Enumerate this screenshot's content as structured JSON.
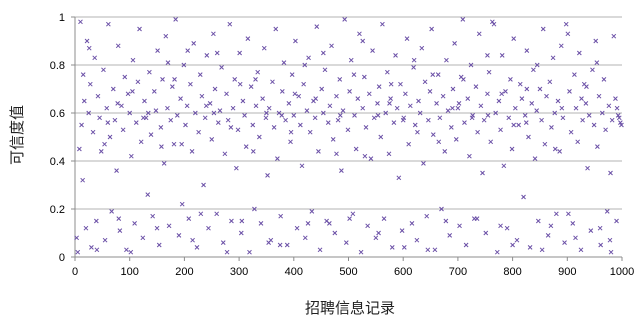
{
  "chart_data": {
    "type": "scatter",
    "title": "",
    "xlabel": "招聘信息记录",
    "ylabel": "可信度值",
    "xlim": [
      0,
      1000
    ],
    "ylim": [
      0,
      1
    ],
    "x_ticks": [
      0,
      100,
      200,
      300,
      400,
      500,
      600,
      700,
      800,
      900,
      1000
    ],
    "y_ticks": [
      0,
      0.2,
      0.4,
      0.6,
      0.8,
      1
    ],
    "y_tick_labels": [
      "0",
      "0.2",
      "0.4",
      "0.6",
      "0.8",
      "1"
    ],
    "grid": "horizontal",
    "legend": "none",
    "marker": "x",
    "series_color": "#6a4fa6",
    "points": [
      [
        3,
        0.08
      ],
      [
        5,
        0.02
      ],
      [
        8,
        0.45
      ],
      [
        10,
        0.98
      ],
      [
        12,
        0.55
      ],
      [
        14,
        0.32
      ],
      [
        17,
        0.65
      ],
      [
        20,
        0.12
      ],
      [
        22,
        0.9
      ],
      [
        25,
        0.6
      ],
      [
        28,
        0.72
      ],
      [
        30,
        0.04
      ],
      [
        33,
        0.52
      ],
      [
        36,
        0.83
      ],
      [
        39,
        0.15
      ],
      [
        42,
        0.67
      ],
      [
        45,
        0.58
      ],
      [
        48,
        0.44
      ],
      [
        52,
        0.78
      ],
      [
        55,
        0.07
      ],
      [
        58,
        0.62
      ],
      [
        61,
        0.97
      ],
      [
        64,
        0.5
      ],
      [
        67,
        0.19
      ],
      [
        70,
        0.7
      ],
      [
        73,
        0.57
      ],
      [
        76,
        0.36
      ],
      [
        79,
        0.88
      ],
      [
        82,
        0.11
      ],
      [
        85,
        0.63
      ],
      [
        88,
        0.53
      ],
      [
        91,
        0.75
      ],
      [
        94,
        0.03
      ],
      [
        97,
        0.68
      ],
      [
        100,
        0.6
      ],
      [
        103,
        0.42
      ],
      [
        106,
        0.82
      ],
      [
        109,
        0.14
      ],
      [
        112,
        0.56
      ],
      [
        115,
        0.73
      ],
      [
        118,
        0.95
      ],
      [
        121,
        0.48
      ],
      [
        124,
        0.08
      ],
      [
        127,
        0.65
      ],
      [
        130,
        0.58
      ],
      [
        133,
        0.26
      ],
      [
        136,
        0.77
      ],
      [
        139,
        0.51
      ],
      [
        142,
        0.17
      ],
      [
        145,
        0.69
      ],
      [
        148,
        0.61
      ],
      [
        151,
        0.86
      ],
      [
        154,
        0.05
      ],
      [
        157,
        0.54
      ],
      [
        160,
        0.74
      ],
      [
        163,
        0.39
      ],
      [
        166,
        0.92
      ],
      [
        169,
        0.62
      ],
      [
        172,
        0.13
      ],
      [
        175,
        0.57
      ],
      [
        178,
        0.71
      ],
      [
        181,
        0.47
      ],
      [
        184,
        0.99
      ],
      [
        187,
        0.59
      ],
      [
        190,
        0.09
      ],
      [
        193,
        0.66
      ],
      [
        196,
        0.22
      ],
      [
        199,
        0.8
      ],
      [
        202,
        0.55
      ],
      [
        205,
        0.63
      ],
      [
        208,
        0.16
      ],
      [
        211,
        0.72
      ],
      [
        214,
        0.44
      ],
      [
        217,
        0.89
      ],
      [
        220,
        0.6
      ],
      [
        223,
        0.04
      ],
      [
        226,
        0.52
      ],
      [
        229,
        0.76
      ],
      [
        232,
        0.67
      ],
      [
        235,
        0.3
      ],
      [
        238,
        0.58
      ],
      [
        241,
        0.84
      ],
      [
        244,
        0.12
      ],
      [
        247,
        0.64
      ],
      [
        250,
        0.49
      ],
      [
        253,
        0.93
      ],
      [
        256,
        0.7
      ],
      [
        259,
        0.18
      ],
      [
        262,
        0.56
      ],
      [
        265,
        0.61
      ],
      [
        268,
        0.79
      ],
      [
        271,
        0.06
      ],
      [
        274,
        0.43
      ],
      [
        277,
        0.68
      ],
      [
        280,
        0.57
      ],
      [
        283,
        0.97
      ],
      [
        286,
        0.15
      ],
      [
        289,
        0.62
      ],
      [
        292,
        0.74
      ],
      [
        295,
        0.37
      ],
      [
        298,
        0.53
      ],
      [
        301,
        0.85
      ],
      [
        304,
        0.1
      ],
      [
        307,
        0.65
      ],
      [
        310,
        0.59
      ],
      [
        313,
        0.46
      ],
      [
        316,
        0.91
      ],
      [
        319,
        0.02
      ],
      [
        322,
        0.71
      ],
      [
        325,
        0.55
      ],
      [
        328,
        0.2
      ],
      [
        331,
        0.63
      ],
      [
        334,
        0.77
      ],
      [
        337,
        0.5
      ],
      [
        340,
        0.14
      ],
      [
        343,
        0.66
      ],
      [
        346,
        0.87
      ],
      [
        349,
        0.58
      ],
      [
        352,
        0.34
      ],
      [
        355,
        0.62
      ],
      [
        358,
        0.07
      ],
      [
        361,
        0.73
      ],
      [
        364,
        0.54
      ],
      [
        367,
        0.95
      ],
      [
        370,
        0.41
      ],
      [
        373,
        0.6
      ],
      [
        376,
        0.17
      ],
      [
        379,
        0.69
      ],
      [
        382,
        0.81
      ],
      [
        385,
        0.57
      ],
      [
        388,
        0.05
      ],
      [
        391,
        0.64
      ],
      [
        394,
        0.48
      ],
      [
        397,
        0.76
      ],
      [
        400,
        0.59
      ],
      [
        403,
        0.9
      ],
      [
        406,
        0.12
      ],
      [
        409,
        0.67
      ],
      [
        412,
        0.55
      ],
      [
        415,
        0.38
      ],
      [
        418,
        0.72
      ],
      [
        421,
        0.08
      ],
      [
        424,
        0.61
      ],
      [
        427,
        0.83
      ],
      [
        430,
        0.52
      ],
      [
        433,
        0.19
      ],
      [
        436,
        0.65
      ],
      [
        439,
        0.58
      ],
      [
        442,
        0.96
      ],
      [
        445,
        0.44
      ],
      [
        448,
        0.03
      ],
      [
        451,
        0.7
      ],
      [
        454,
        0.6
      ],
      [
        457,
        0.78
      ],
      [
        460,
        0.15
      ],
      [
        463,
        0.56
      ],
      [
        466,
        0.63
      ],
      [
        469,
        0.88
      ],
      [
        472,
        0.49
      ],
      [
        475,
        0.1
      ],
      [
        478,
        0.67
      ],
      [
        481,
        0.57
      ],
      [
        484,
        0.74
      ],
      [
        487,
        0.36
      ],
      [
        490,
        0.61
      ],
      [
        493,
        0.99
      ],
      [
        496,
        0.06
      ],
      [
        499,
        0.53
      ],
      [
        502,
        0.69
      ],
      [
        505,
        0.82
      ],
      [
        508,
        0.18
      ],
      [
        511,
        0.59
      ],
      [
        514,
        0.45
      ],
      [
        517,
        0.66
      ],
      [
        520,
        0.93
      ],
      [
        523,
        0.02
      ],
      [
        526,
        0.62
      ],
      [
        529,
        0.75
      ],
      [
        532,
        0.54
      ],
      [
        535,
        0.13
      ],
      [
        538,
        0.68
      ],
      [
        541,
        0.41
      ],
      [
        544,
        0.86
      ],
      [
        547,
        0.58
      ],
      [
        550,
        0.08
      ],
      [
        553,
        0.64
      ],
      [
        556,
        0.71
      ],
      [
        559,
        0.5
      ],
      [
        562,
        0.97
      ],
      [
        565,
        0.16
      ],
      [
        568,
        0.6
      ],
      [
        571,
        0.77
      ],
      [
        574,
        0.43
      ],
      [
        577,
        0.66
      ],
      [
        580,
        0.04
      ],
      [
        583,
        0.56
      ],
      [
        586,
        0.84
      ],
      [
        589,
        0.62
      ],
      [
        592,
        0.33
      ],
      [
        595,
        0.72
      ],
      [
        598,
        0.11
      ],
      [
        601,
        0.58
      ],
      [
        604,
        0.68
      ],
      [
        607,
        0.91
      ],
      [
        610,
        0.47
      ],
      [
        613,
        0.63
      ],
      [
        616,
        0.14
      ],
      [
        619,
        0.79
      ],
      [
        622,
        0.55
      ],
      [
        625,
        0.07
      ],
      [
        628,
        0.65
      ],
      [
        631,
        0.6
      ],
      [
        634,
        0.87
      ],
      [
        637,
        0.39
      ],
      [
        640,
        0.73
      ],
      [
        643,
        0.17
      ],
      [
        646,
        0.57
      ],
      [
        649,
        0.69
      ],
      [
        652,
        0.95
      ],
      [
        655,
        0.51
      ],
      [
        658,
        0.03
      ],
      [
        661,
        0.64
      ],
      [
        664,
        0.76
      ],
      [
        667,
        0.58
      ],
      [
        670,
        0.2
      ],
      [
        673,
        0.67
      ],
      [
        676,
        0.44
      ],
      [
        679,
        0.82
      ],
      [
        682,
        0.61
      ],
      [
        685,
        0.09
      ],
      [
        688,
        0.54
      ],
      [
        691,
        0.7
      ],
      [
        694,
        0.89
      ],
      [
        697,
        0.49
      ],
      [
        700,
        0.62
      ],
      [
        703,
        0.13
      ],
      [
        706,
        0.75
      ],
      [
        709,
        0.99
      ],
      [
        712,
        0.56
      ],
      [
        715,
        0.05
      ],
      [
        718,
        0.66
      ],
      [
        721,
        0.42
      ],
      [
        724,
        0.8
      ],
      [
        727,
        0.59
      ],
      [
        730,
        0.16
      ],
      [
        733,
        0.71
      ],
      [
        736,
        0.52
      ],
      [
        739,
        0.93
      ],
      [
        742,
        0.63
      ],
      [
        745,
        0.35
      ],
      [
        748,
        0.57
      ],
      [
        751,
        0.1
      ],
      [
        754,
        0.68
      ],
      [
        757,
        0.77
      ],
      [
        760,
        0.48
      ],
      [
        763,
        0.98
      ],
      [
        766,
        0.97
      ],
      [
        769,
        0.6
      ],
      [
        772,
        0.02
      ],
      [
        775,
        0.65
      ],
      [
        778,
        0.53
      ],
      [
        781,
        0.84
      ],
      [
        784,
        0.38
      ],
      [
        787,
        0.69
      ],
      [
        790,
        0.12
      ],
      [
        793,
        0.58
      ],
      [
        796,
        0.74
      ],
      [
        799,
        0.45
      ],
      [
        802,
        0.91
      ],
      [
        805,
        0.62
      ],
      [
        808,
        0.07
      ],
      [
        811,
        0.55
      ],
      [
        814,
        0.72
      ],
      [
        817,
        0.66
      ],
      [
        820,
        0.25
      ],
      [
        823,
        0.59
      ],
      [
        826,
        0.86
      ],
      [
        829,
        0.5
      ],
      [
        832,
        0.04
      ],
      [
        835,
        0.64
      ],
      [
        838,
        0.78
      ],
      [
        841,
        0.41
      ],
      [
        844,
        0.61
      ],
      [
        847,
        0.15
      ],
      [
        850,
        0.7
      ],
      [
        853,
        0.57
      ],
      [
        856,
        0.95
      ],
      [
        859,
        0.47
      ],
      [
        862,
        0.67
      ],
      [
        865,
        0.09
      ],
      [
        868,
        0.73
      ],
      [
        871,
        0.54
      ],
      [
        874,
        0.83
      ],
      [
        877,
        0.6
      ],
      [
        880,
        0.18
      ],
      [
        883,
        0.65
      ],
      [
        886,
        0.44
      ],
      [
        889,
        0.88
      ],
      [
        892,
        0.58
      ],
      [
        895,
        0.06
      ],
      [
        898,
        0.97
      ],
      [
        901,
        0.93
      ],
      [
        904,
        0.69
      ],
      [
        907,
        0.52
      ],
      [
        910,
        0.14
      ],
      [
        913,
        0.76
      ],
      [
        916,
        0.62
      ],
      [
        919,
        0.48
      ],
      [
        922,
        0.85
      ],
      [
        925,
        0.03
      ],
      [
        928,
        0.57
      ],
      [
        931,
        0.72
      ],
      [
        934,
        0.64
      ],
      [
        937,
        0.37
      ],
      [
        940,
        0.59
      ],
      [
        943,
        0.11
      ],
      [
        946,
        0.78
      ],
      [
        949,
        0.55
      ],
      [
        952,
        0.9
      ],
      [
        955,
        0.46
      ],
      [
        958,
        0.67
      ],
      [
        961,
        0.05
      ],
      [
        964,
        0.6
      ],
      [
        967,
        0.74
      ],
      [
        970,
        0.53
      ],
      [
        973,
        0.19
      ],
      [
        976,
        0.63
      ],
      [
        979,
        0.35
      ],
      [
        982,
        0.57
      ],
      [
        985,
        0.92
      ],
      [
        988,
        0.66
      ],
      [
        991,
        0.62
      ],
      [
        993,
        0.59
      ],
      [
        995,
        0.58
      ],
      [
        997,
        0.56
      ],
      [
        999,
        0.55
      ],
      [
        15,
        0.76
      ],
      [
        40,
        0.03
      ],
      [
        60,
        0.56
      ],
      [
        80,
        0.16
      ],
      [
        105,
        0.69
      ],
      [
        125,
        0.58
      ],
      [
        150,
        0.12
      ],
      [
        170,
        0.81
      ],
      [
        195,
        0.47
      ],
      [
        215,
        0.07
      ],
      [
        240,
        0.63
      ],
      [
        260,
        0.85
      ],
      [
        285,
        0.54
      ],
      [
        305,
        0.15
      ],
      [
        330,
        0.74
      ],
      [
        350,
        0.6
      ],
      [
        375,
        0.05
      ],
      [
        395,
        0.52
      ],
      [
        420,
        0.8
      ],
      [
        440,
        0.66
      ],
      [
        465,
        0.14
      ],
      [
        485,
        0.59
      ],
      [
        510,
        0.76
      ],
      [
        530,
        0.42
      ],
      [
        555,
        0.1
      ],
      [
        575,
        0.64
      ],
      [
        600,
        0.57
      ],
      [
        620,
        0.82
      ],
      [
        645,
        0.03
      ],
      [
        665,
        0.48
      ],
      [
        690,
        0.62
      ],
      [
        710,
        0.74
      ],
      [
        735,
        0.16
      ],
      [
        755,
        0.59
      ],
      [
        780,
        0.68
      ],
      [
        800,
        0.05
      ],
      [
        825,
        0.56
      ],
      [
        845,
        0.8
      ],
      [
        870,
        0.13
      ],
      [
        890,
        0.62
      ],
      [
        915,
        0.08
      ],
      [
        935,
        0.71
      ],
      [
        960,
        0.12
      ],
      [
        980,
        0.02
      ],
      [
        26,
        0.87
      ],
      [
        54,
        0.47
      ],
      [
        78,
        0.64
      ],
      [
        102,
        0.02
      ],
      [
        134,
        0.6
      ],
      [
        158,
        0.46
      ],
      [
        182,
        0.74
      ],
      [
        206,
        0.86
      ],
      [
        230,
        0.18
      ],
      [
        254,
        0.6
      ],
      [
        278,
        0.02
      ],
      [
        302,
        0.72
      ],
      [
        326,
        0.44
      ],
      [
        354,
        0.06
      ],
      [
        378,
        0.59
      ],
      [
        402,
        0.68
      ],
      [
        426,
        0.14
      ],
      [
        454,
        0.85
      ],
      [
        478,
        0.43
      ],
      [
        502,
        0.16
      ],
      [
        526,
        0.9
      ],
      [
        554,
        0.59
      ],
      [
        578,
        0.72
      ],
      [
        602,
        0.04
      ],
      [
        626,
        0.52
      ],
      [
        654,
        0.76
      ],
      [
        678,
        0.15
      ],
      [
        702,
        0.64
      ],
      [
        726,
        0.58
      ],
      [
        754,
        0.84
      ],
      [
        778,
        0.13
      ],
      [
        802,
        0.55
      ],
      [
        826,
        0.7
      ],
      [
        854,
        0.03
      ],
      [
        878,
        0.45
      ],
      [
        902,
        0.18
      ],
      [
        926,
        0.66
      ],
      [
        954,
        0.81
      ],
      [
        978,
        0.07
      ],
      [
        990,
        0.15
      ]
    ]
  }
}
